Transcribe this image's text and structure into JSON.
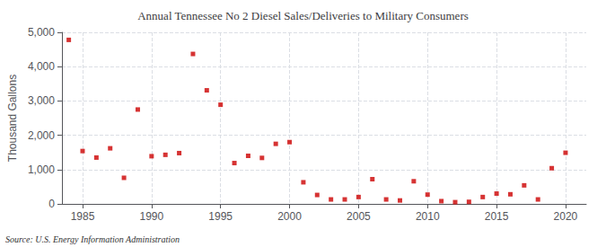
{
  "chart_data": {
    "type": "scatter",
    "title": "Annual Tennessee No 2 Diesel Sales/Deliveries to Military Consumers",
    "ylabel": "Thousand Gallons",
    "annotations": [
      "Source: U.S. Energy Information Administration"
    ],
    "color": "#cc0000",
    "marker": "square",
    "x": [
      1984,
      1985,
      1986,
      1987,
      1988,
      1989,
      1990,
      1991,
      1992,
      1993,
      1994,
      1995,
      1996,
      1997,
      1998,
      1999,
      2000,
      2001,
      2002,
      2003,
      2004,
      2005,
      2006,
      2007,
      2008,
      2009,
      2010,
      2011,
      2012,
      2013,
      2014,
      2015,
      2016,
      2017,
      2018,
      2019,
      2020
    ],
    "values": [
      4780,
      1540,
      1350,
      1620,
      760,
      2750,
      1390,
      1430,
      1480,
      4370,
      3310,
      2890,
      1190,
      1400,
      1340,
      1750,
      1800,
      630,
      260,
      130,
      130,
      200,
      720,
      130,
      100,
      660,
      270,
      80,
      50,
      60,
      200,
      300,
      280,
      540,
      130,
      1040,
      1490
    ],
    "xlim": [
      1983.5,
      2021.5
    ],
    "ylim": [
      0,
      5000
    ],
    "xticks": [
      1985,
      1990,
      1995,
      2000,
      2005,
      2010,
      2015,
      2020
    ],
    "yticks": [
      0,
      {
        "value": 1000,
        "label": "1,000"
      },
      {
        "value": 2000,
        "label": "2,000"
      },
      {
        "value": 3000,
        "label": "3,000"
      },
      {
        "value": 4000,
        "label": "4,000"
      },
      {
        "value": 5000,
        "label": "5,000"
      }
    ],
    "grid": true
  }
}
